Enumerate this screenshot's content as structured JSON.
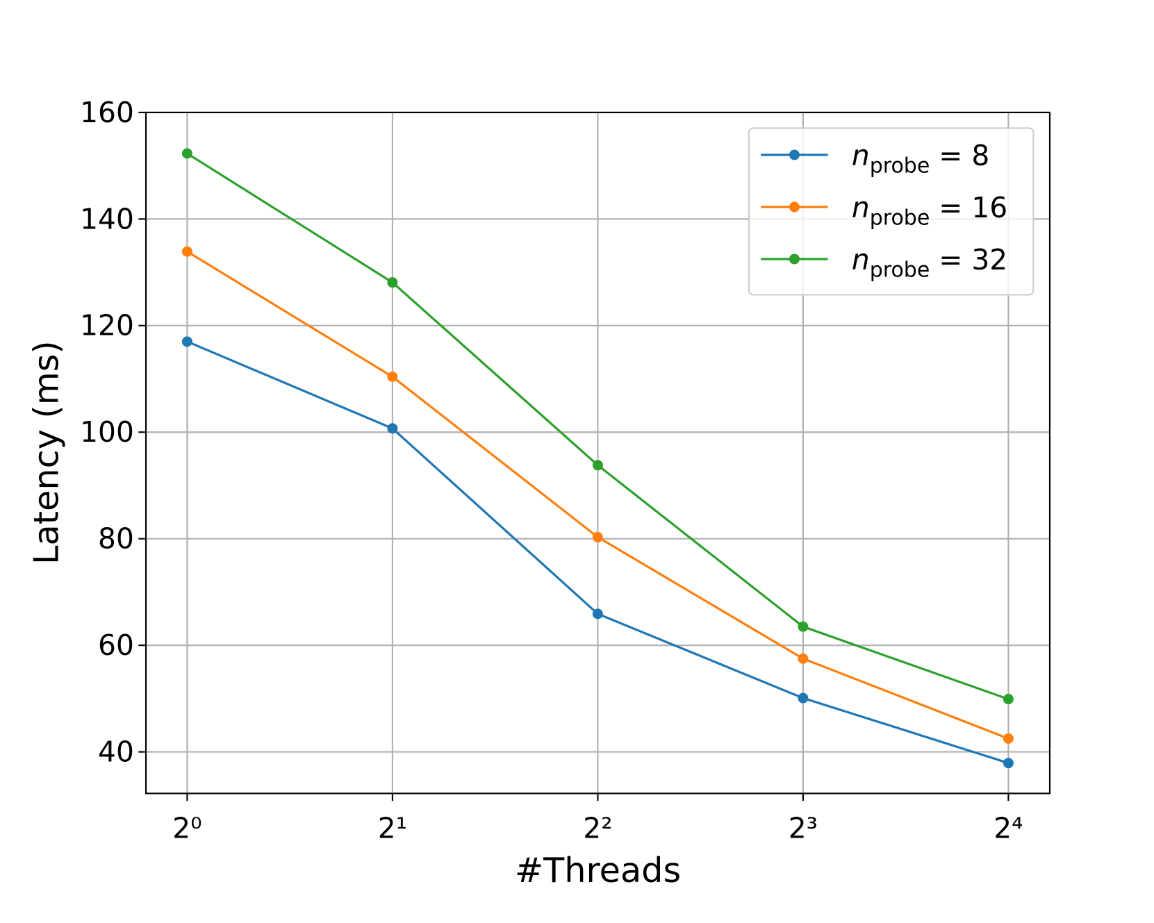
{
  "chart_data": {
    "type": "line",
    "xlabel": "#Threads",
    "ylabel": "Latency (ms)",
    "x": [
      1,
      2,
      4,
      8,
      16
    ],
    "xscale": "log2",
    "xlim": [
      0.87,
      18.4
    ],
    "xticks": [
      {
        "value": 1,
        "label": "2⁰"
      },
      {
        "value": 2,
        "label": "2¹"
      },
      {
        "value": 4,
        "label": "2²"
      },
      {
        "value": 8,
        "label": "2³"
      },
      {
        "value": 16,
        "label": "2⁴"
      }
    ],
    "ylim": [
      32.2,
      160
    ],
    "yticks": [
      40,
      60,
      80,
      100,
      120,
      140,
      160
    ],
    "grid": true,
    "legend": "upper right",
    "series": [
      {
        "name": "nprobe = 8",
        "color": "#1f77b4",
        "values": [
          117,
          100.7,
          65.9,
          50.1,
          37.9
        ]
      },
      {
        "name": "nprobe = 16",
        "color": "#ff7f0e",
        "values": [
          133.9,
          110.4,
          80.3,
          57.5,
          42.5
        ]
      },
      {
        "name": "nprobe = 32",
        "color": "#2ca02c",
        "values": [
          152.3,
          128.1,
          93.8,
          63.5,
          49.9
        ]
      }
    ]
  }
}
